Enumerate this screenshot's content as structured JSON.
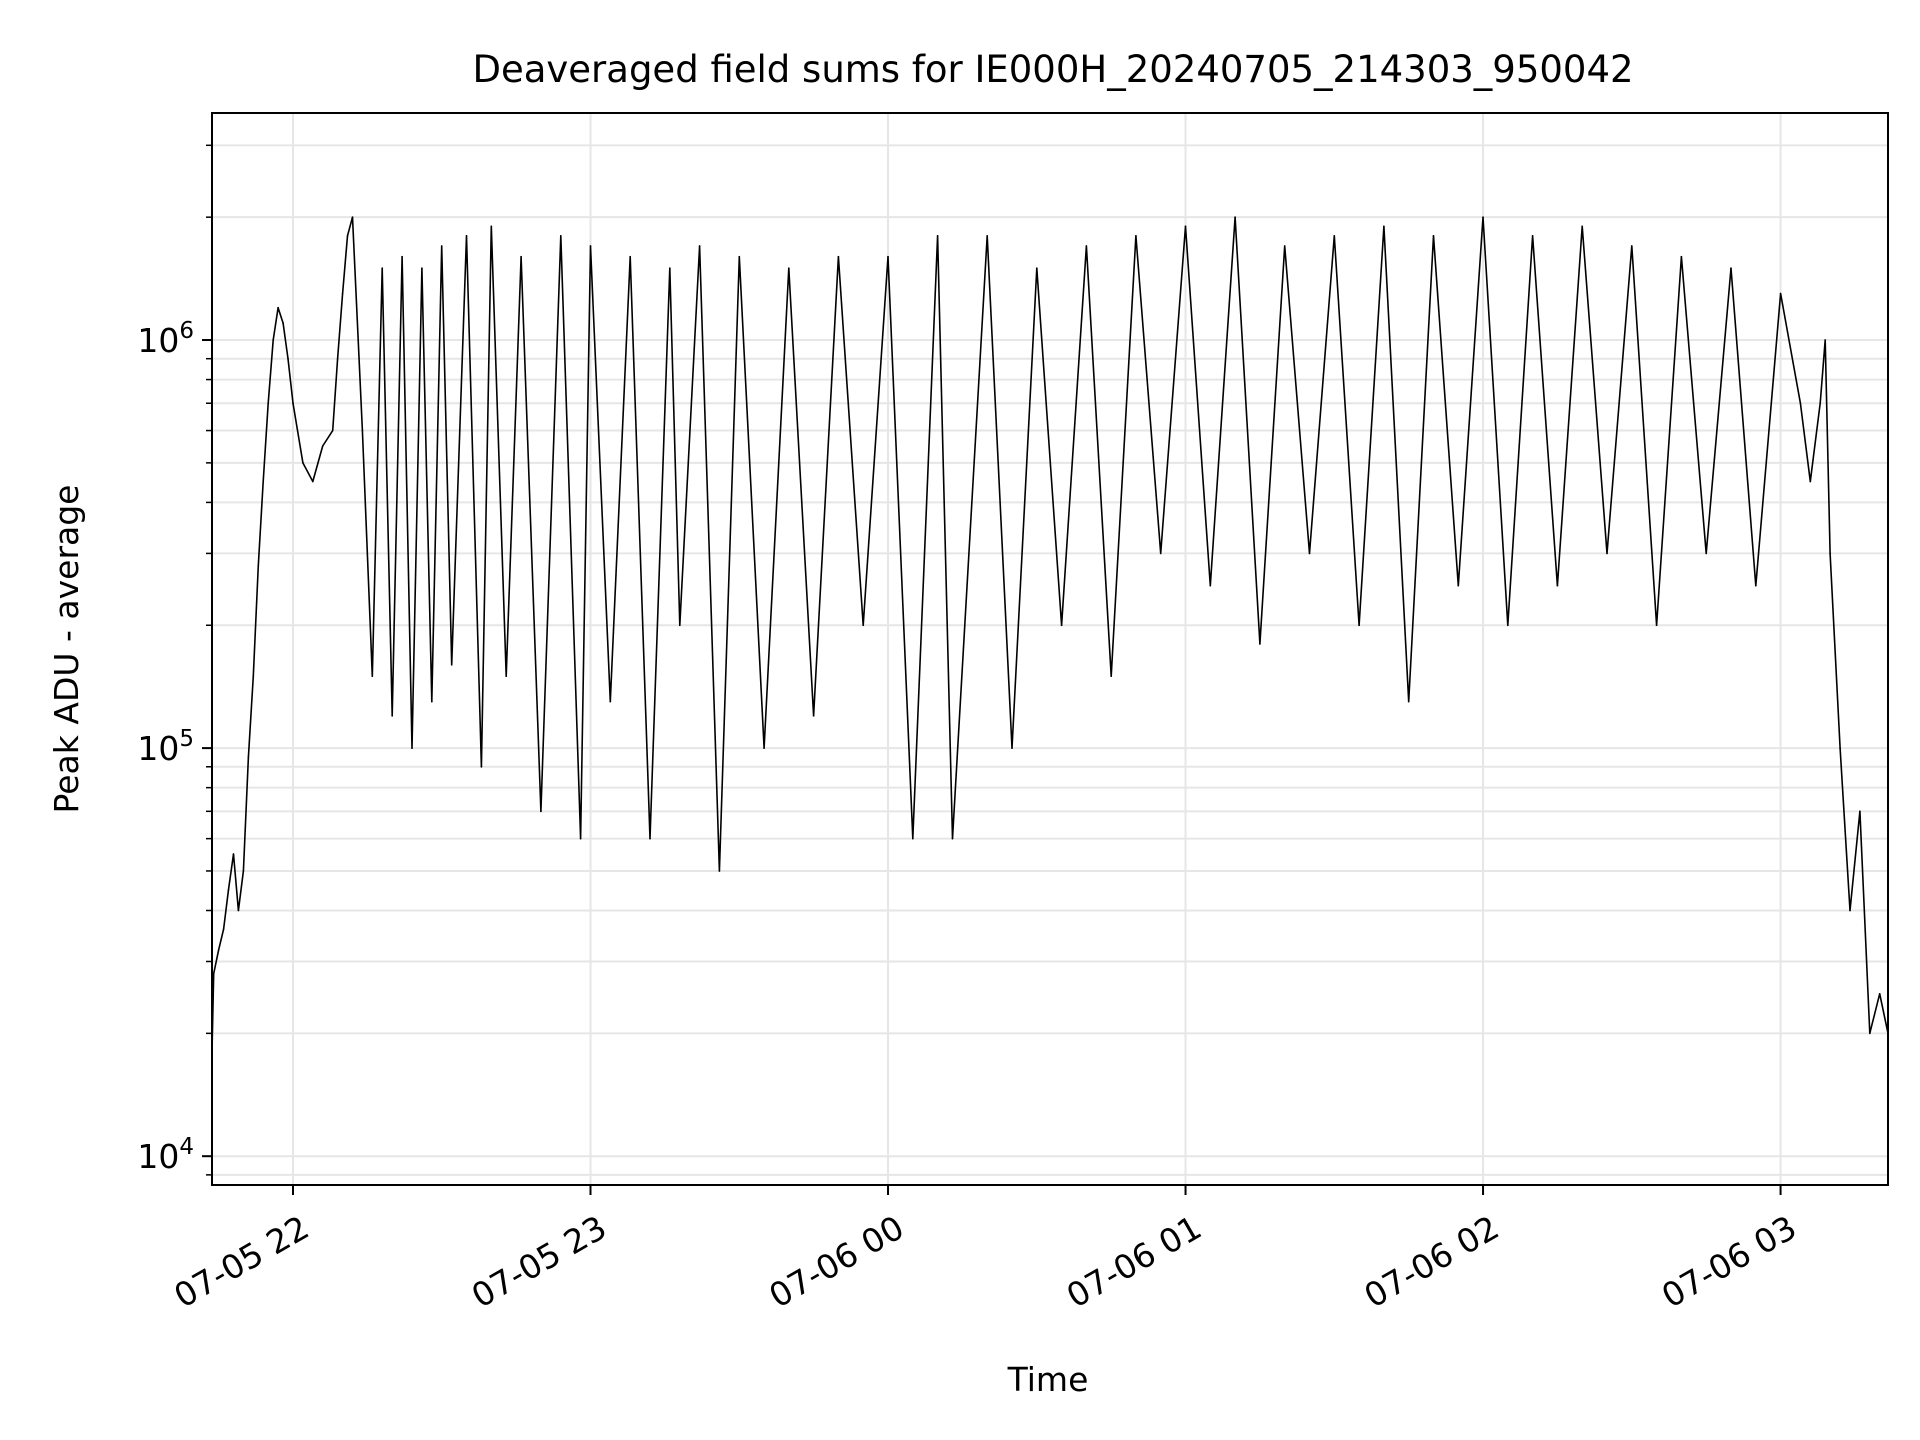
{
  "chart_data": {
    "type": "line",
    "title": "Deaveraged field sums for IE000H_20240705_214303_950042",
    "xlabel": "Time",
    "ylabel": "Peak ADU - average",
    "y_scale": "log",
    "ylim": [
      8500,
      3600000
    ],
    "xlim": [
      "07-05 21:43:40",
      "07-06 03:21:40"
    ],
    "grid": true,
    "line_color": "#000000",
    "grid_color": "#e6e6e6",
    "x_ticks": [
      {
        "value": "07-05 22:00",
        "label": "07-05 22"
      },
      {
        "value": "07-05 23:00",
        "label": "07-05 23"
      },
      {
        "value": "07-06 00:00",
        "label": "07-06 00"
      },
      {
        "value": "07-06 01:00",
        "label": "07-06 01"
      },
      {
        "value": "07-06 02:00",
        "label": "07-06 02"
      },
      {
        "value": "07-06 03:00",
        "label": "07-06 03"
      }
    ],
    "y_ticks": [
      {
        "value": 10000,
        "base": "10",
        "exp": "4"
      },
      {
        "value": 100000,
        "base": "10",
        "exp": "5"
      },
      {
        "value": 1000000,
        "base": "10",
        "exp": "6"
      }
    ],
    "series": [
      {
        "x": [
          "07-05 21:43:40",
          "07-05 21:44:00",
          "07-05 21:45:00",
          "07-05 21:46:00",
          "07-05 21:47:00",
          "07-05 21:48:00",
          "07-05 21:49:00",
          "07-05 21:50:00",
          "07-05 21:51:00",
          "07-05 21:52:00",
          "07-05 21:53:00",
          "07-05 21:54:00",
          "07-05 21:55:00",
          "07-05 21:56:00",
          "07-05 21:57:00",
          "07-05 21:58:00",
          "07-05 21:59:00",
          "07-05 22:00:00",
          "07-05 22:02:00",
          "07-05 22:04:00",
          "07-05 22:06:00",
          "07-05 22:08:00",
          "07-05 22:09:00",
          "07-05 22:10:00",
          "07-05 22:11:00",
          "07-05 22:12:00",
          "07-05 22:14:00",
          "07-05 22:16:00",
          "07-05 22:18:00",
          "07-05 22:20:00",
          "07-05 22:22:00",
          "07-05 22:24:00",
          "07-05 22:26:00",
          "07-05 22:28:00",
          "07-05 22:30:00",
          "07-05 22:32:00",
          "07-05 22:35:00",
          "07-05 22:38:00",
          "07-05 22:40:00",
          "07-05 22:43:00",
          "07-05 22:46:00",
          "07-05 22:50:00",
          "07-05 22:54:00",
          "07-05 22:58:00",
          "07-05 23:00:00",
          "07-05 23:04:00",
          "07-05 23:08:00",
          "07-05 23:12:00",
          "07-05 23:16:00",
          "07-05 23:18:00",
          "07-05 23:22:00",
          "07-05 23:26:00",
          "07-05 23:30:00",
          "07-05 23:35:00",
          "07-05 23:40:00",
          "07-05 23:45:00",
          "07-05 23:50:00",
          "07-05 23:55:00",
          "07-06 00:00:00",
          "07-06 00:05:00",
          "07-06 00:10:00",
          "07-06 00:13:00",
          "07-06 00:20:00",
          "07-06 00:25:00",
          "07-06 00:30:00",
          "07-06 00:35:00",
          "07-06 00:40:00",
          "07-06 00:45:00",
          "07-06 00:50:00",
          "07-06 00:55:00",
          "07-06 01:00:00",
          "07-06 01:05:00",
          "07-06 01:10:00",
          "07-06 01:15:00",
          "07-06 01:20:00",
          "07-06 01:25:00",
          "07-06 01:30:00",
          "07-06 01:35:00",
          "07-06 01:40:00",
          "07-06 01:45:00",
          "07-06 01:50:00",
          "07-06 01:55:00",
          "07-06 02:00:00",
          "07-06 02:05:00",
          "07-06 02:10:00",
          "07-06 02:15:00",
          "07-06 02:20:00",
          "07-06 02:25:00",
          "07-06 02:30:00",
          "07-06 02:35:00",
          "07-06 02:40:00",
          "07-06 02:45:00",
          "07-06 02:50:00",
          "07-06 02:55:00",
          "07-06 03:00:00",
          "07-06 03:04:00",
          "07-06 03:06:00",
          "07-06 03:08:00",
          "07-06 03:09:00",
          "07-06 03:10:00",
          "07-06 03:12:00",
          "07-06 03:14:00",
          "07-06 03:16:00",
          "07-06 03:18:00",
          "07-06 03:20:00",
          "07-06 03:21:40"
        ],
        "y": [
          18000,
          28000,
          32000,
          36000,
          45000,
          55000,
          40000,
          50000,
          95000,
          150000,
          280000,
          450000,
          700000,
          1000000,
          1200000,
          1100000,
          900000,
          700000,
          500000,
          450000,
          550000,
          600000,
          900000,
          1300000,
          1800000,
          2000000,
          600000,
          150000,
          1500000,
          120000,
          1600000,
          100000,
          1500000,
          130000,
          1700000,
          160000,
          1800000,
          90000,
          1900000,
          150000,
          1600000,
          70000,
          1800000,
          60000,
          1700000,
          130000,
          1600000,
          60000,
          1500000,
          200000,
          1700000,
          50000,
          1600000,
          100000,
          1500000,
          120000,
          1600000,
          200000,
          1600000,
          60000,
          1800000,
          60000,
          1800000,
          100000,
          1500000,
          200000,
          1700000,
          150000,
          1800000,
          300000,
          1900000,
          250000,
          2000000,
          180000,
          1700000,
          300000,
          1800000,
          200000,
          1900000,
          130000,
          1800000,
          250000,
          2000000,
          200000,
          1800000,
          250000,
          1900000,
          300000,
          1700000,
          200000,
          1600000,
          300000,
          1500000,
          250000,
          1300000,
          700000,
          450000,
          700000,
          1000000,
          300000,
          100000,
          40000,
          70000,
          20000,
          25000,
          20000
        ]
      }
    ]
  }
}
